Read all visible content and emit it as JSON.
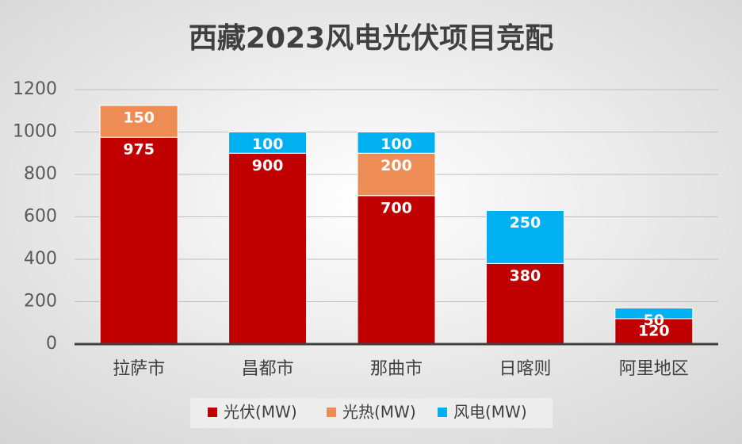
{
  "chart_data": {
    "type": "bar",
    "stacked": true,
    "title": "西藏2023风电光伏项目竞配",
    "categories": [
      "拉萨市",
      "昌都市",
      "那曲市",
      "日喀则",
      "阿里地区"
    ],
    "series": [
      {
        "name": "光伏(MW)",
        "color": "#c00000",
        "values": [
          975,
          900,
          700,
          380,
          120
        ]
      },
      {
        "name": "光热(MW)",
        "color": "#ee8c55",
        "values": [
          150,
          null,
          200,
          null,
          null
        ]
      },
      {
        "name": "风电(MW)",
        "color": "#00b0f0",
        "values": [
          null,
          100,
          100,
          250,
          50
        ]
      }
    ],
    "ylim": [
      0,
      1200
    ],
    "yticks": [
      0,
      200,
      400,
      600,
      800,
      1000,
      1200
    ],
    "grid": true,
    "legend": "bottom"
  }
}
